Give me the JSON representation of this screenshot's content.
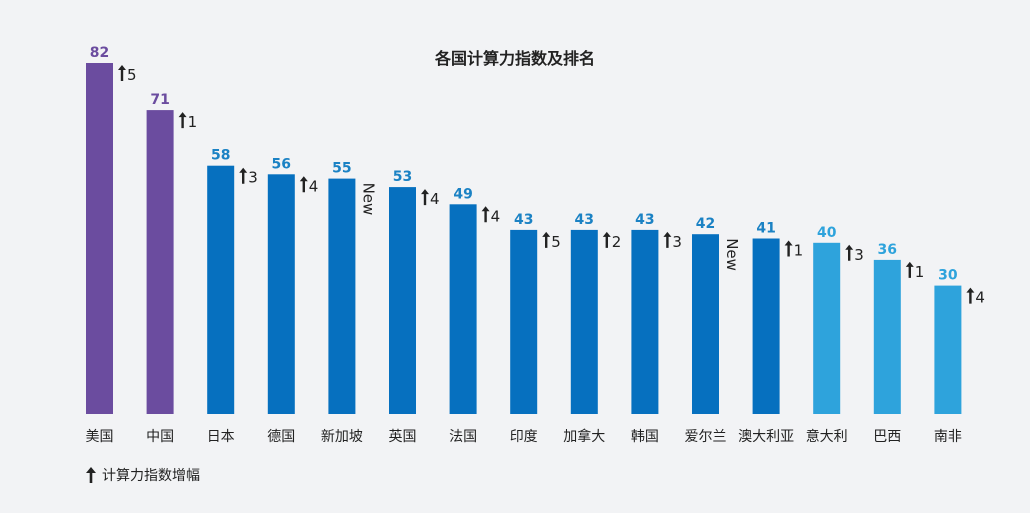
{
  "chart_data": {
    "type": "bar",
    "title": "各国计算力指数及排名",
    "xlabel": "",
    "ylabel": "",
    "ylim": [
      0,
      82
    ],
    "grid": false,
    "categories": [
      "美国",
      "中国",
      "日本",
      "德国",
      "新加坡",
      "英国",
      "法国",
      "印度",
      "加拿大",
      "韩国",
      "爱尔兰",
      "澳大利亚",
      "意大利",
      "巴西",
      "南非"
    ],
    "values": [
      82,
      71,
      58,
      56,
      55,
      53,
      49,
      43,
      43,
      43,
      42,
      41,
      40,
      36,
      30
    ],
    "rank_change": [
      "5",
      "1",
      "3",
      "4",
      "New",
      "4",
      "4",
      "5",
      "2",
      "3",
      "New",
      "1",
      "3",
      "1",
      "4"
    ],
    "tier": [
      "top",
      "top",
      "mid",
      "mid",
      "mid",
      "mid",
      "mid",
      "mid",
      "mid",
      "mid",
      "mid",
      "mid",
      "low",
      "low",
      "low"
    ]
  },
  "colors": {
    "top": "#6b4c9f",
    "mid": "#0670bf",
    "low": "#2ea3dc",
    "top_label": "#6b4c9f",
    "mid_label": "#1b82c4",
    "low_label": "#2ea3dc"
  },
  "legend": {
    "icon": "up-arrow-icon",
    "text": "计算力指数增幅"
  }
}
